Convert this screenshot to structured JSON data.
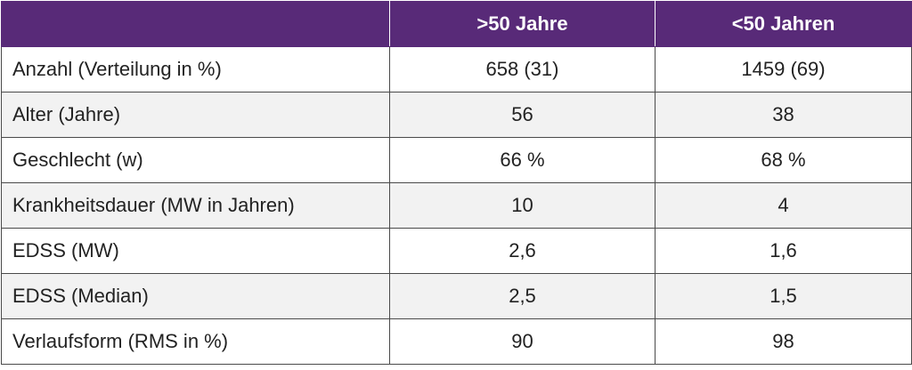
{
  "table": {
    "header": [
      ">50 Jahre",
      "<50 Jahren"
    ],
    "rows": [
      [
        "Anzahl (Verteilung in %)",
        "658 (31)",
        "1459 (69)"
      ],
      [
        "Alter (Jahre)",
        "56",
        "38"
      ],
      [
        "Geschlecht (w)",
        "66 %",
        "68 %"
      ],
      [
        "Krankheitsdauer (MW in Jahren)",
        "10",
        "4"
      ],
      [
        "EDSS (MW)",
        "2,6",
        "1,6"
      ],
      [
        "EDSS (Median)",
        "2,5",
        "1,5"
      ],
      [
        "Verlaufsform (RMS in %)",
        "90",
        "98"
      ]
    ]
  }
}
